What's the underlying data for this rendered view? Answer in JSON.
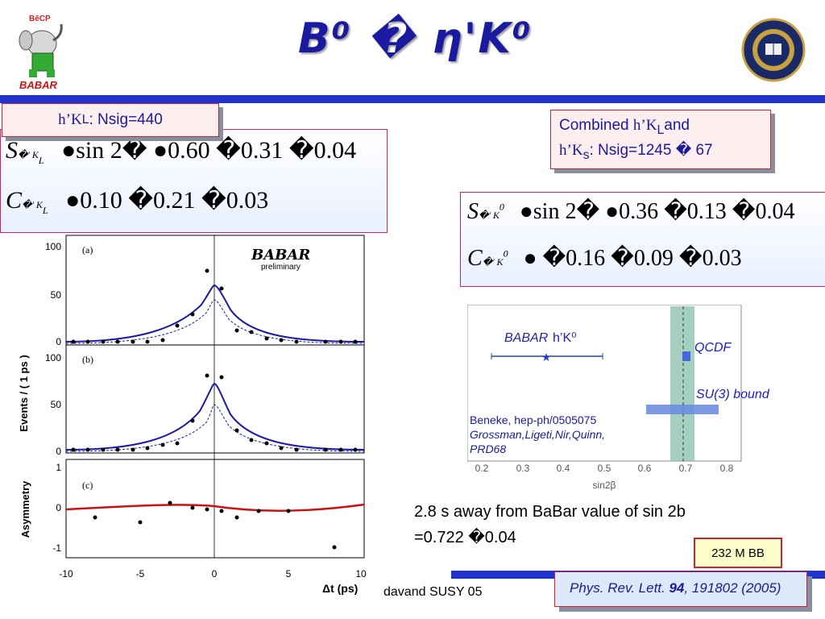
{
  "title": "B⁰ � η'K⁰",
  "logos": {
    "left_caption": "BABAR",
    "left_mark": "BēCP"
  },
  "box1": {
    "label_pre": "h’K",
    "label_sub": "L",
    "label_post": ": Nsig=440"
  },
  "eq1": {
    "s_sym": "S",
    "s_sub": "�' K",
    "s_subsub": "L",
    "s_rhs": "●sin 2�  ●0.60 �0.31 �0.04",
    "c_sym": "C",
    "c_sub": "�' K",
    "c_subsub": "L",
    "c_rhs": "●0.10 �0.21 �0.03"
  },
  "box2": {
    "l1_pre": "Combined ",
    "l1_mid": "h’K",
    "l1_sub": "L",
    "l1_post": "and",
    "l2_pre": "h’K",
    "l2_sub": "s",
    "l2_post": ": Nsig=1245 � 67"
  },
  "eq2": {
    "s_sym": "S",
    "s_sub": "�' K",
    "s_sup": "0",
    "s_rhs": "●sin 2�  ●0.36 �0.13 �0.04",
    "c_sym": "C",
    "c_sub": "�' K",
    "c_sup": "0",
    "c_rhs": "● �0.16 �0.09 �0.03"
  },
  "plots": {
    "babar": "BABAR",
    "preliminary": "preliminary",
    "ylabel_top": "Events / ( 1 ps )",
    "ylabel_bottom": "Asymmetry",
    "xlabel": "Δt (ps)",
    "panel_a": "(a)",
    "panel_b": "(b)",
    "panel_c": "(c)",
    "yticks_top": [
      "100",
      "50",
      "0"
    ],
    "yticks_asym": [
      "1",
      "0",
      "-1"
    ],
    "xticks": [
      "-10",
      "-5",
      "0",
      "5",
      "10"
    ]
  },
  "sin2b": {
    "babar_label": "BABAR",
    "eta_label": "h’K⁰",
    "qcdf": "QCDF",
    "su3": "SU(3) bound",
    "ref1": "Beneke, hep-ph/0505075",
    "ref2": "Grossman,Ligeti,Nir,Quinn,",
    "ref3": "PRD68",
    "xticks": [
      "0.2",
      "0.3",
      "0.4",
      "0.5",
      "0.6",
      "0.7",
      "0.8"
    ],
    "xlabel": "sin2β"
  },
  "note": {
    "l1": "2.8 s away from BaBar value of sin 2b",
    "l2": "=0.722 �0.04"
  },
  "bb": "232 M BB",
  "ref": {
    "pre": "Phys. Rev. Lett. ",
    "vol": "94",
    "post": ", 191802 (2005)"
  },
  "footer": "davand  SUSY 05"
}
